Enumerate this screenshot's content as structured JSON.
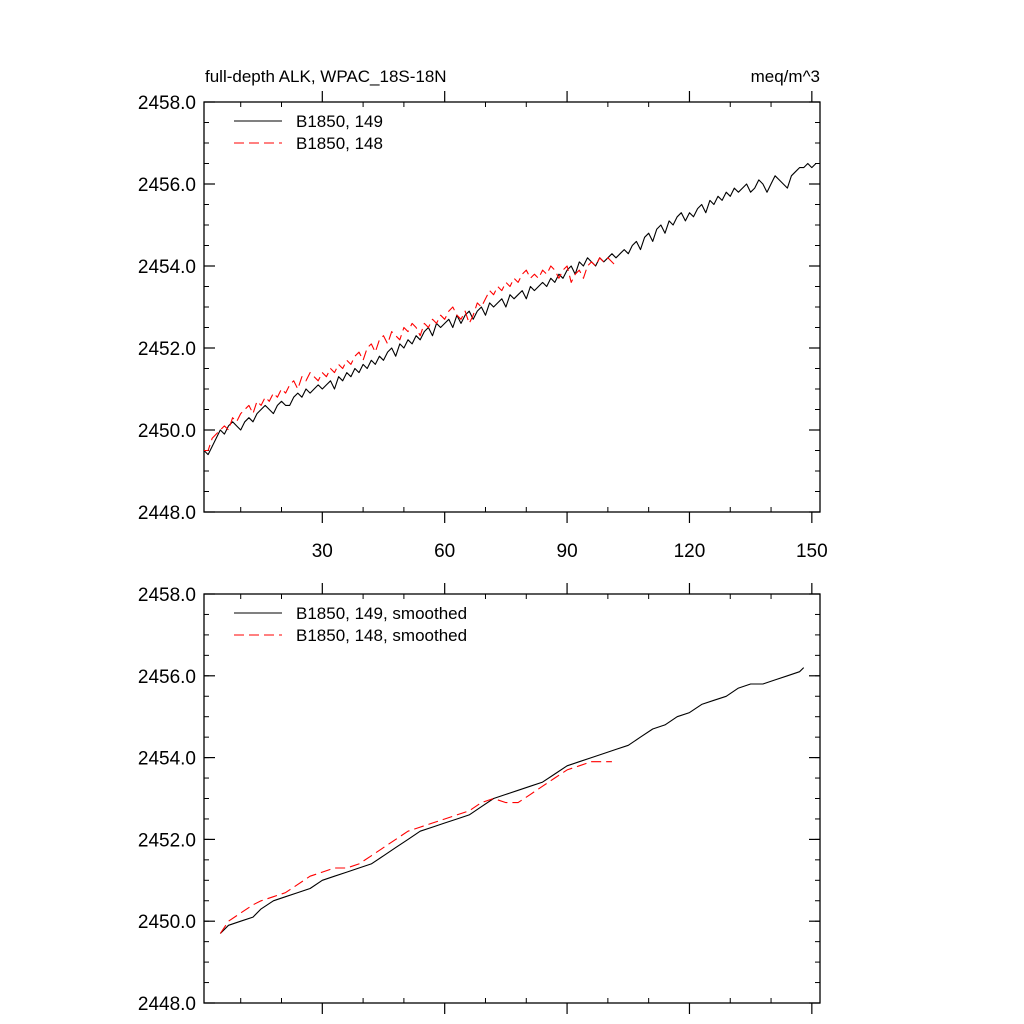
{
  "header": {
    "title_left": "full-depth ALK, WPAC_18S-18N",
    "title_right": "meq/m^3"
  },
  "colors": {
    "series_149": "#000000",
    "series_148": "#ff0000"
  },
  "chart_data": [
    {
      "type": "line",
      "title": "full-depth ALK, WPAC_18S-18N",
      "units": "meq/m^3",
      "xlim": [
        1,
        152
      ],
      "ylim": [
        2448.0,
        2458.0
      ],
      "x_ticks": [
        30,
        60,
        90,
        120,
        150
      ],
      "x_tick_labels": [
        "30",
        "60",
        "90",
        "120",
        "150"
      ],
      "y_ticks": [
        2448.0,
        2450.0,
        2452.0,
        2454.0,
        2456.0,
        2458.0
      ],
      "y_tick_labels": [
        "2448.0",
        "2450.0",
        "2452.0",
        "2454.0",
        "2456.0",
        "2458.0"
      ],
      "legend_position": "top-left",
      "series": [
        {
          "name": "B1850, 149",
          "style": "solid",
          "x": [
            1,
            2,
            3,
            4,
            5,
            6,
            7,
            8,
            9,
            10,
            11,
            12,
            13,
            14,
            15,
            16,
            17,
            18,
            19,
            20,
            21,
            22,
            23,
            24,
            25,
            26,
            27,
            28,
            29,
            30,
            31,
            32,
            33,
            34,
            35,
            36,
            37,
            38,
            39,
            40,
            41,
            42,
            43,
            44,
            45,
            46,
            47,
            48,
            49,
            50,
            51,
            52,
            53,
            54,
            55,
            56,
            57,
            58,
            59,
            60,
            61,
            62,
            63,
            64,
            65,
            66,
            67,
            68,
            69,
            70,
            71,
            72,
            73,
            74,
            75,
            76,
            77,
            78,
            79,
            80,
            81,
            82,
            83,
            84,
            85,
            86,
            87,
            88,
            89,
            90,
            91,
            92,
            93,
            94,
            95,
            96,
            97,
            98,
            99,
            100,
            101,
            102,
            103,
            104,
            105,
            106,
            107,
            108,
            109,
            110,
            111,
            112,
            113,
            114,
            115,
            116,
            117,
            118,
            119,
            120,
            121,
            122,
            123,
            124,
            125,
            126,
            127,
            128,
            129,
            130,
            131,
            132,
            133,
            134,
            135,
            136,
            137,
            138,
            139,
            140,
            141,
            142,
            143,
            144,
            145,
            146,
            147,
            148,
            149,
            150,
            151
          ],
          "values": [
            2449.5,
            2449.4,
            2449.6,
            2449.8,
            2450.0,
            2449.9,
            2450.1,
            2450.2,
            2450.1,
            2450.0,
            2450.2,
            2450.3,
            2450.2,
            2450.4,
            2450.5,
            2450.6,
            2450.5,
            2450.4,
            2450.6,
            2450.7,
            2450.6,
            2450.6,
            2450.8,
            2450.9,
            2450.8,
            2451.0,
            2450.9,
            2451.0,
            2451.1,
            2451.0,
            2451.1,
            2451.2,
            2451.0,
            2451.3,
            2451.2,
            2451.4,
            2451.3,
            2451.5,
            2451.4,
            2451.6,
            2451.5,
            2451.7,
            2451.6,
            2451.8,
            2451.7,
            2451.9,
            2452.0,
            2451.8,
            2452.1,
            2452.0,
            2452.2,
            2452.1,
            2452.3,
            2452.2,
            2452.4,
            2452.5,
            2452.3,
            2452.6,
            2452.5,
            2452.6,
            2452.7,
            2452.5,
            2452.8,
            2452.6,
            2452.8,
            2452.9,
            2452.7,
            2452.9,
            2453.0,
            2452.8,
            2453.1,
            2453.0,
            2453.1,
            2453.2,
            2453.0,
            2453.3,
            2453.2,
            2453.3,
            2453.4,
            2453.2,
            2453.5,
            2453.4,
            2453.5,
            2453.6,
            2453.5,
            2453.7,
            2453.6,
            2453.8,
            2453.7,
            2453.9,
            2454.0,
            2453.8,
            2454.1,
            2454.0,
            2454.2,
            2454.1,
            2454.0,
            2454.2,
            2454.1,
            2454.2,
            2454.3,
            2454.2,
            2454.3,
            2454.4,
            2454.3,
            2454.5,
            2454.6,
            2454.4,
            2454.7,
            2454.8,
            2454.6,
            2454.9,
            2455.0,
            2454.8,
            2455.1,
            2455.0,
            2455.2,
            2455.3,
            2455.1,
            2455.3,
            2455.2,
            2455.4,
            2455.5,
            2455.3,
            2455.6,
            2455.5,
            2455.7,
            2455.6,
            2455.8,
            2455.7,
            2455.9,
            2455.8,
            2455.9,
            2456.0,
            2455.8,
            2455.9,
            2456.1,
            2456.0,
            2455.8,
            2456.0,
            2456.2,
            2456.1,
            2456.0,
            2455.9,
            2456.2,
            2456.3,
            2456.4,
            2456.4,
            2456.5,
            2456.4,
            2456.5
          ]
        },
        {
          "name": "B1850, 148",
          "style": "dashed",
          "x": [
            1,
            2,
            3,
            4,
            5,
            6,
            7,
            8,
            9,
            10,
            11,
            12,
            13,
            14,
            15,
            16,
            17,
            18,
            19,
            20,
            21,
            22,
            23,
            24,
            25,
            26,
            27,
            28,
            29,
            30,
            31,
            32,
            33,
            34,
            35,
            36,
            37,
            38,
            39,
            40,
            41,
            42,
            43,
            44,
            45,
            46,
            47,
            48,
            49,
            50,
            51,
            52,
            53,
            54,
            55,
            56,
            57,
            58,
            59,
            60,
            61,
            62,
            63,
            64,
            65,
            66,
            67,
            68,
            69,
            70,
            71,
            72,
            73,
            74,
            75,
            76,
            77,
            78,
            79,
            80,
            81,
            82,
            83,
            84,
            85,
            86,
            87,
            88,
            89,
            90,
            91,
            92,
            93,
            94,
            95,
            96,
            97,
            98,
            99,
            100,
            101,
            102
          ],
          "values": [
            2449.5,
            2449.5,
            2449.8,
            2449.9,
            2450.0,
            2450.1,
            2450.0,
            2450.3,
            2450.2,
            2450.4,
            2450.5,
            2450.6,
            2450.4,
            2450.7,
            2450.6,
            2450.8,
            2450.7,
            2450.9,
            2450.8,
            2451.0,
            2450.9,
            2451.1,
            2451.2,
            2451.0,
            2451.3,
            2451.2,
            2451.4,
            2451.3,
            2451.2,
            2451.4,
            2451.3,
            2451.5,
            2451.4,
            2451.6,
            2451.5,
            2451.7,
            2451.6,
            2451.8,
            2451.9,
            2451.7,
            2452.0,
            2452.1,
            2451.9,
            2452.2,
            2452.3,
            2452.1,
            2452.4,
            2452.3,
            2452.2,
            2452.5,
            2452.4,
            2452.6,
            2452.5,
            2452.3,
            2452.6,
            2452.5,
            2452.7,
            2452.6,
            2452.8,
            2452.7,
            2452.9,
            2453.0,
            2452.8,
            2452.7,
            2452.9,
            2452.6,
            2452.8,
            2453.1,
            2453.0,
            2453.2,
            2453.4,
            2453.3,
            2453.5,
            2453.4,
            2453.6,
            2453.5,
            2453.7,
            2453.6,
            2453.8,
            2453.9,
            2453.7,
            2453.8,
            2453.7,
            2453.9,
            2453.8,
            2454.0,
            2453.9,
            2453.7,
            2453.9,
            2454.0,
            2453.6,
            2453.8,
            2453.9,
            2453.7,
            2454.0,
            2454.1,
            2454.0,
            2454.2,
            2454.1,
            2454.2,
            2454.1,
            2454.0
          ]
        }
      ]
    },
    {
      "type": "line",
      "xlim": [
        1,
        152
      ],
      "ylim": [
        2448.0,
        2458.0
      ],
      "y_ticks": [
        2448.0,
        2450.0,
        2452.0,
        2454.0,
        2456.0,
        2458.0
      ],
      "y_tick_labels": [
        "2448.0",
        "2450.0",
        "2452.0",
        "2454.0",
        "2456.0",
        "2458.0"
      ],
      "legend_position": "top-left",
      "series": [
        {
          "name": "B1850, 149, smoothed",
          "style": "solid",
          "x": [
            5,
            7,
            10,
            13,
            15,
            18,
            21,
            24,
            27,
            30,
            33,
            36,
            39,
            42,
            45,
            48,
            51,
            54,
            57,
            60,
            63,
            66,
            69,
            72,
            75,
            78,
            81,
            84,
            87,
            90,
            93,
            96,
            99,
            102,
            105,
            108,
            111,
            114,
            117,
            120,
            123,
            126,
            129,
            132,
            135,
            138,
            141,
            144,
            147,
            148
          ],
          "values": [
            2449.7,
            2449.9,
            2450.0,
            2450.1,
            2450.3,
            2450.5,
            2450.6,
            2450.7,
            2450.8,
            2451.0,
            2451.1,
            2451.2,
            2451.3,
            2451.4,
            2451.6,
            2451.8,
            2452.0,
            2452.2,
            2452.3,
            2452.4,
            2452.5,
            2452.6,
            2452.8,
            2453.0,
            2453.1,
            2453.2,
            2453.3,
            2453.4,
            2453.6,
            2453.8,
            2453.9,
            2454.0,
            2454.1,
            2454.2,
            2454.3,
            2454.5,
            2454.7,
            2454.8,
            2455.0,
            2455.1,
            2455.3,
            2455.4,
            2455.5,
            2455.7,
            2455.8,
            2455.8,
            2455.9,
            2456.0,
            2456.1,
            2456.2
          ]
        },
        {
          "name": "B1850, 148, smoothed",
          "style": "dashed",
          "x": [
            5,
            7,
            10,
            13,
            15,
            18,
            21,
            24,
            27,
            30,
            33,
            36,
            39,
            42,
            45,
            48,
            51,
            54,
            57,
            60,
            63,
            66,
            69,
            72,
            75,
            78,
            81,
            84,
            87,
            90,
            93,
            96,
            99,
            101
          ],
          "values": [
            2449.7,
            2450.0,
            2450.2,
            2450.4,
            2450.5,
            2450.6,
            2450.7,
            2450.9,
            2451.1,
            2451.2,
            2451.3,
            2451.3,
            2451.4,
            2451.6,
            2451.8,
            2452.0,
            2452.2,
            2452.3,
            2452.4,
            2452.5,
            2452.6,
            2452.7,
            2452.9,
            2453.0,
            2452.9,
            2452.9,
            2453.1,
            2453.3,
            2453.5,
            2453.7,
            2453.8,
            2453.9,
            2453.9,
            2453.9
          ]
        }
      ]
    }
  ]
}
